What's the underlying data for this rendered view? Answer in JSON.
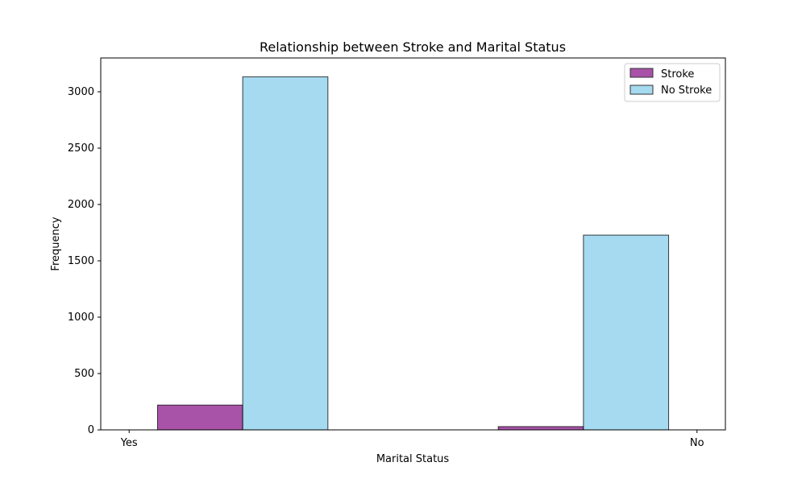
{
  "chart_data": {
    "type": "bar",
    "title": "Relationship between Stroke and Marital Status",
    "xlabel": "Marital Status",
    "ylabel": "Frequency",
    "x_ticks": [
      "Yes",
      "No"
    ],
    "ylim": [
      0,
      3300
    ],
    "y_ticks": [
      0,
      500,
      1000,
      1500,
      2000,
      2500,
      3000
    ],
    "grid": false,
    "legend_position": "top-right",
    "series": [
      {
        "name": "Stroke",
        "color": "#8B1A8B",
        "values": [
          220,
          0,
          29
        ]
      },
      {
        "name": "No Stroke",
        "color": "#87CEEB",
        "values": [
          3133,
          0,
          1728
        ]
      }
    ]
  }
}
